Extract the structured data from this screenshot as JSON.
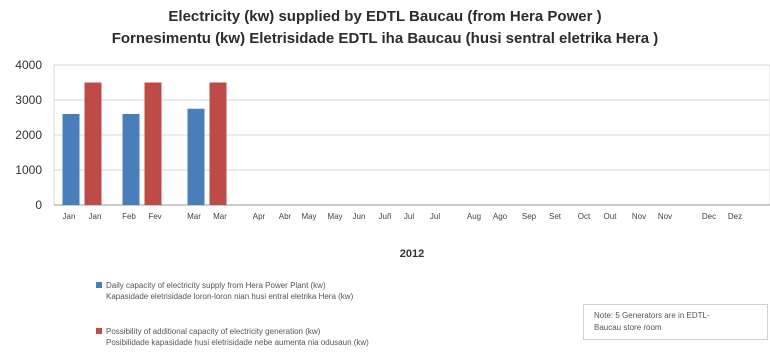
{
  "chart_data": {
    "type": "bar",
    "title": "Electricity (kw) supplied by EDTL Baucau (from Hera Power )",
    "subtitle": "Fornesimentu (kw) Eletrisidade EDTL iha Baucau (husi sentral eletrika Hera )",
    "xlabel": "2012",
    "ylabel": "",
    "ylim": [
      0,
      4000
    ],
    "yticks": [
      0,
      1000,
      2000,
      3000,
      4000
    ],
    "grid": true,
    "legend_position": "bottom",
    "categories": [
      [
        "Jan",
        "Jan"
      ],
      [
        "Feb",
        "Fev"
      ],
      [
        "Mar",
        "Mar"
      ],
      [
        "Apr",
        "Abr"
      ],
      [
        "May",
        "May"
      ],
      [
        "Jun",
        "Juñ"
      ],
      [
        "Jul",
        "Jul"
      ],
      [
        "Aug",
        "Ago"
      ],
      [
        "Sep",
        "Set"
      ],
      [
        "Oct",
        "Out"
      ],
      [
        "Nov",
        "Nov"
      ],
      [
        "Dec",
        "Dez"
      ]
    ],
    "series": [
      {
        "name_en": "Daily capacity of electricity supply from Hera Power Plant (kw)",
        "name_tet": "Kapasidade eletrisidade loron-loron nian husi entral eletrika Hera (kw)",
        "color": "#4a7ebb",
        "values": [
          2600,
          2600,
          2750,
          null,
          null,
          null,
          null,
          null,
          null,
          null,
          null,
          null
        ]
      },
      {
        "name_en": "Possibility of additional capacity of electricity generation (kw)",
        "name_tet": "Posibilidade kapasidade husi eletrisidade nebe aumenta nia odusaun (kw)",
        "color": "#be4b48",
        "values": [
          3500,
          3500,
          3500,
          null,
          null,
          null,
          null,
          null,
          null,
          null,
          null,
          null
        ]
      }
    ]
  },
  "note": {
    "line1": "Note: 5 Generators are in EDTL-",
    "line2": "Baucau store room"
  }
}
